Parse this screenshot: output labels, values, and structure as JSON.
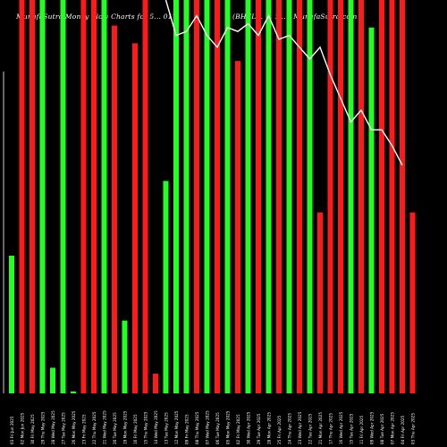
{
  "chart_data": {
    "type": "bar",
    "title_left": "MunafaSutra Money Flow Charts for 5... 017",
    "title_right": "(BHEL... ... 1... ) MunafaSutra.com",
    "colors": {
      "up": "#22ff22",
      "down": "#ff1a1a",
      "line": "#ffffff",
      "background": "#000000"
    },
    "ylim": [
      0,
      100
    ],
    "categories": [
      "03 Fri Jun 2025",
      "02 Mon Jun 2025",
      "30 Fri May 2025",
      "29 Thu May 2025",
      "28 Wed May 2025",
      "27 Tue May 2025",
      "26 Mon May 2025",
      "23 Fri May 2025",
      "22 Thu May 2025",
      "21 Wed May 2025",
      "20 Tue May 2025",
      "19 Mon May 2025",
      "16 Fri May 2025",
      "15 Thu May 2025",
      "14 Wed May 2025",
      "13 Tue May 2025",
      "12 Mon May 2025",
      "09 Fri May 2025",
      "08 Thu May 2025",
      "07 Wed May 2025",
      "06 Tue May 2025",
      "05 Mon May 2025",
      "02 Fri May 2025",
      "30 Wed Apr 2025",
      "29 Tue Apr 2025",
      "28 Mon Apr 2025",
      "25 Fri Apr 2025",
      "24 Thu Apr 2025",
      "23 Wed Apr 2025",
      "22 Tue Apr 2025",
      "21 Mon Apr 2025",
      "17 Thu Apr 2025",
      "16 Wed Apr 2025",
      "15 Tue Apr 2025",
      "11 Fri Apr 2025",
      "09 Wed Apr 2025",
      "08 Tue Apr 2025",
      "07 Mon Apr 2025",
      "04 Fri Apr 2025",
      "03 Thu Apr 2025"
    ],
    "bars": [
      {
        "value": 35,
        "dir": "up"
      },
      {
        "value": 100,
        "dir": "down"
      },
      {
        "value": 100,
        "dir": "down"
      },
      {
        "value": 100,
        "dir": "up"
      },
      {
        "value": 6.5,
        "dir": "up"
      },
      {
        "value": 100,
        "dir": "up"
      },
      {
        "value": 0.5,
        "dir": "up"
      },
      {
        "value": 100,
        "dir": "down"
      },
      {
        "value": 100,
        "dir": "down"
      },
      {
        "value": 100,
        "dir": "up"
      },
      {
        "value": 93.5,
        "dir": "down"
      },
      {
        "value": 18.5,
        "dir": "up"
      },
      {
        "value": 89,
        "dir": "down"
      },
      {
        "value": 100,
        "dir": "down"
      },
      {
        "value": 5,
        "dir": "down"
      },
      {
        "value": 54,
        "dir": "up"
      },
      {
        "value": 100,
        "dir": "up"
      },
      {
        "value": 100,
        "dir": "up"
      },
      {
        "value": 100,
        "dir": "down"
      },
      {
        "value": 100,
        "dir": "up"
      },
      {
        "value": 100,
        "dir": "down"
      },
      {
        "value": 100,
        "dir": "up"
      },
      {
        "value": 84.5,
        "dir": "down"
      },
      {
        "value": 100,
        "dir": "up"
      },
      {
        "value": 100,
        "dir": "down"
      },
      {
        "value": 100,
        "dir": "up"
      },
      {
        "value": 100,
        "dir": "down"
      },
      {
        "value": 100,
        "dir": "up"
      },
      {
        "value": 100,
        "dir": "down"
      },
      {
        "value": 100,
        "dir": "up"
      },
      {
        "value": 46,
        "dir": "down"
      },
      {
        "value": 100,
        "dir": "down"
      },
      {
        "value": 100,
        "dir": "down"
      },
      {
        "value": 100,
        "dir": "up"
      },
      {
        "value": 100,
        "dir": "down"
      },
      {
        "value": 93,
        "dir": "up"
      },
      {
        "value": 100,
        "dir": "down"
      },
      {
        "value": 100,
        "dir": "down"
      },
      {
        "value": 100,
        "dir": "down"
      },
      {
        "value": 46,
        "dir": "down"
      }
    ],
    "line_start_index": 15,
    "line_values": [
      100,
      91,
      92,
      96,
      91,
      88,
      93,
      92,
      94,
      91,
      96,
      90,
      91,
      88,
      85,
      88,
      81,
      75,
      69,
      72,
      67,
      67,
      63,
      58
    ]
  }
}
